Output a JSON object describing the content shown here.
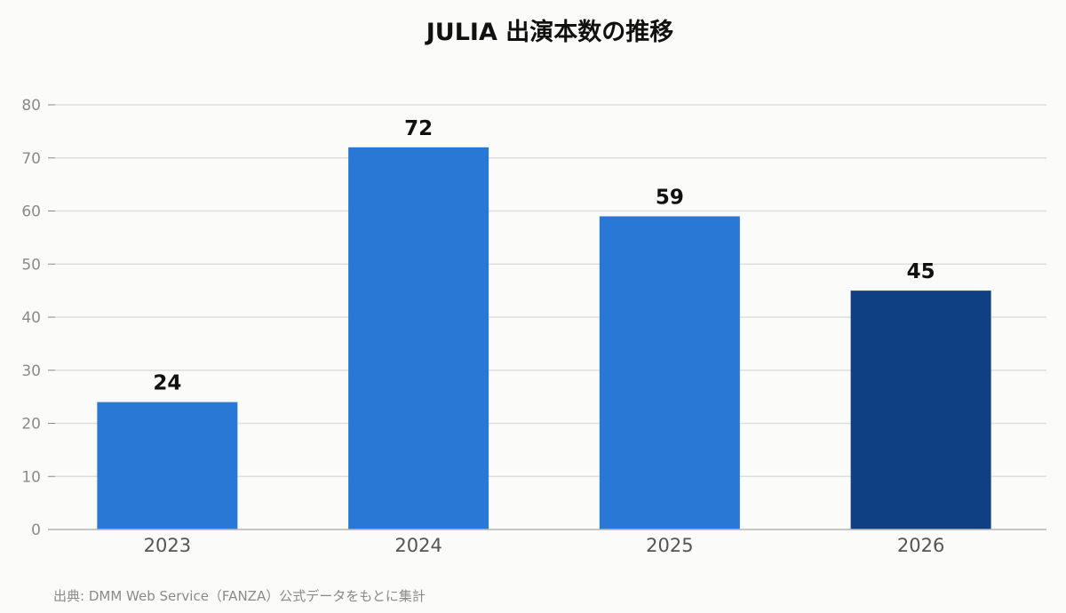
{
  "chart_data": {
    "type": "bar",
    "title": "JULIA 出演本数の推移",
    "categories": [
      "2023",
      "2024",
      "2025",
      "2026"
    ],
    "values": [
      24,
      72,
      59,
      45
    ],
    "data_labels": [
      "24",
      "72",
      "59",
      "45"
    ],
    "ylim": [
      0,
      80
    ],
    "yticks": [
      0,
      10,
      20,
      30,
      40,
      50,
      60,
      70,
      80
    ],
    "xlabel": "",
    "ylabel": "",
    "grid": "horizontal",
    "legend": "none",
    "colors": {
      "bar": "#2a78d6",
      "highlight_bar": "#0f4083",
      "highlight_index": 3
    }
  },
  "footer": {
    "source": "出典: DMM Web Service（FANZA）公式データをもとに集計"
  },
  "colors": {
    "background": "#fbfbf9",
    "gridline": "#dedede",
    "tick_text": "#8a8a8a",
    "category_text": "#555555"
  }
}
